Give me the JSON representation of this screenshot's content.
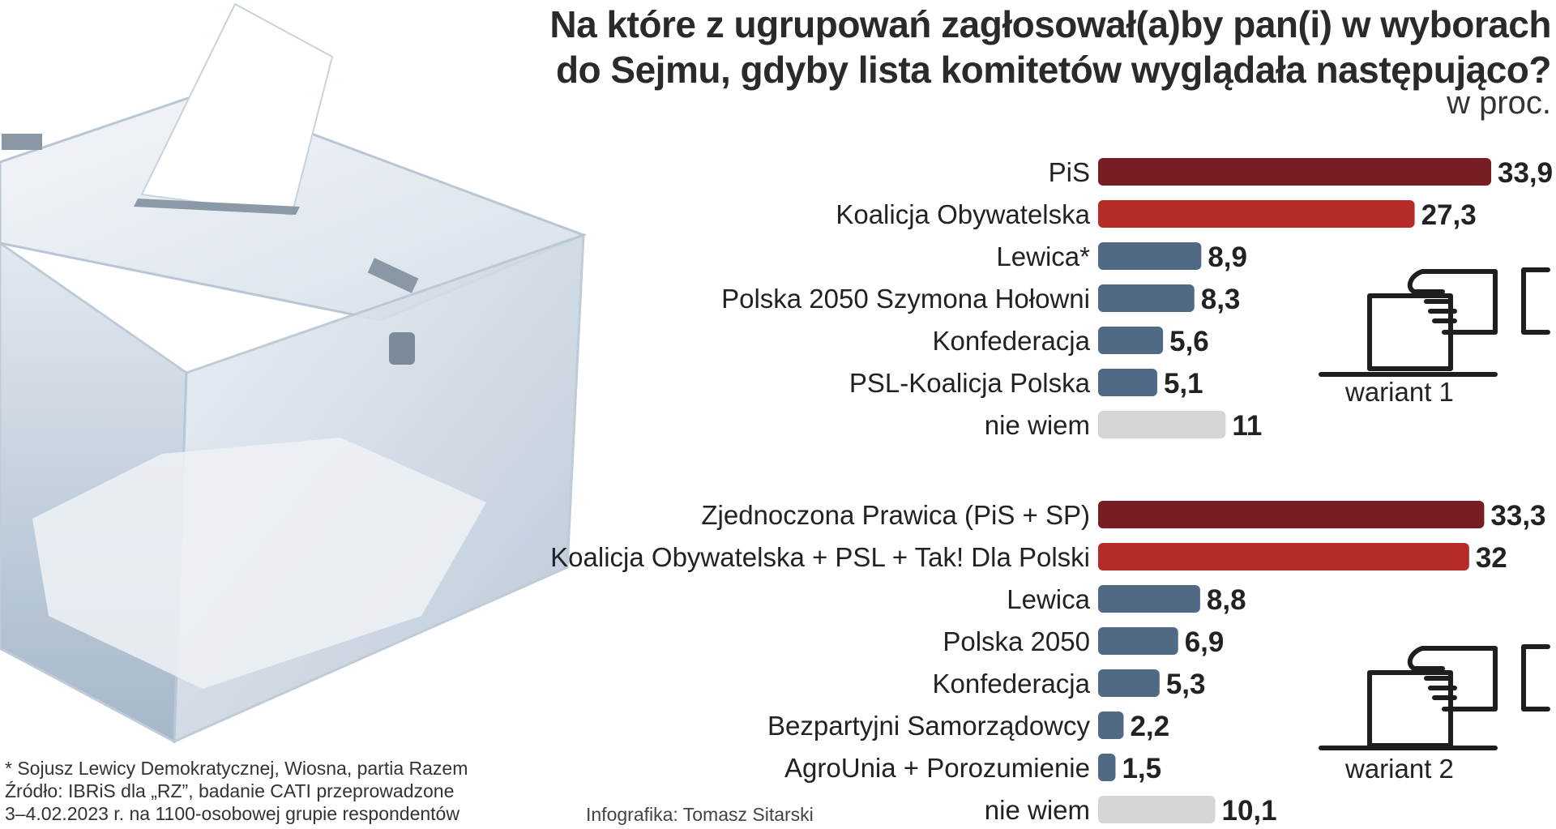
{
  "title": {
    "line1": "Na które z ugrupowań zagłosował(a)by pan(i) w wyborach",
    "line2": "do Sejmu, gdyby lista komitetów wyglądała następująco?",
    "unit": "w proc."
  },
  "colors": {
    "top1": "#771d24",
    "top2": "#b52b27",
    "party": "#506a85",
    "unknown": "#d6d6d6",
    "text": "#222222"
  },
  "chart_data": [
    {
      "type": "bar",
      "orientation": "horizontal",
      "title": "wariant 1",
      "unit": "w proc.",
      "categories": [
        "PiS",
        "Koalicja Obywatelska",
        "Lewica*",
        "Polska 2050 Szymona Hołowni",
        "Konfederacja",
        "PSL-Koalicja Polska",
        "nie wiem"
      ],
      "values": [
        33.9,
        27.3,
        8.9,
        8.3,
        5.6,
        5.1,
        11
      ],
      "labels": [
        "33,9",
        "27,3",
        "8,9",
        "8,3",
        "5,6",
        "5,1",
        "11"
      ],
      "color_keys": [
        "top1",
        "top2",
        "party",
        "party",
        "party",
        "party",
        "unknown"
      ],
      "xlim": [
        0,
        33.9
      ]
    },
    {
      "type": "bar",
      "orientation": "horizontal",
      "title": "wariant 2",
      "unit": "w proc.",
      "categories": [
        "Zjednoczona Prawica (PiS + SP)",
        "Koalicja Obywatelska + PSL + Tak! Dla Polski",
        "Lewica",
        "Polska 2050",
        "Konfederacja",
        "Bezpartyjni Samorządowcy",
        "AgroUnia + Porozumienie",
        "nie wiem"
      ],
      "values": [
        33.3,
        32,
        8.8,
        6.9,
        5.3,
        2.2,
        1.5,
        10.1
      ],
      "labels": [
        "33,3",
        "32",
        "8,8",
        "6,9",
        "5,3",
        "2,2",
        "1,5",
        "10,1"
      ],
      "color_keys": [
        "top1",
        "top2",
        "party",
        "party",
        "party",
        "party",
        "party",
        "unknown"
      ],
      "xlim": [
        0,
        33.9
      ]
    }
  ],
  "variants": {
    "v1": "wariant 1",
    "v2": "wariant 2"
  },
  "footnote": {
    "line1": "* Sojusz Lewicy Demokratycznej, Wiosna, partia Razem",
    "line2": "Źródło: IBRiS dla „RZ”, badanie CATI przeprowadzone",
    "line3": "3–4.02.2023 r. na 1100-osobowej grupie respondentów"
  },
  "credit": "Infografika: Tomasz Sitarski"
}
